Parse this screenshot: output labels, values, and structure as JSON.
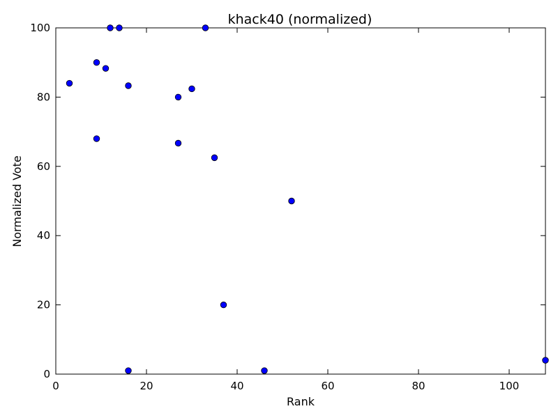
{
  "chart_data": {
    "type": "scatter",
    "title": "khack40 (normalized)",
    "xlabel": "Rank",
    "ylabel": "Normalized Vote",
    "xlim": [
      0,
      108
    ],
    "ylim": [
      0,
      100
    ],
    "xticks": [
      0,
      20,
      40,
      60,
      80,
      100
    ],
    "yticks": [
      0,
      20,
      40,
      60,
      80,
      100
    ],
    "grid": false,
    "colors": {
      "marker_fill": "#0000ff",
      "marker_edge": "#000000",
      "axes": "#000000"
    },
    "series": [
      {
        "x": [
          3,
          9,
          9,
          11,
          12,
          14,
          16,
          16,
          27,
          27,
          30,
          33,
          35,
          37,
          46,
          52,
          108
        ],
        "y": [
          84,
          90,
          68,
          88.3,
          100,
          100,
          83.3,
          1,
          80,
          66.7,
          82.4,
          100,
          62.5,
          20,
          1,
          50,
          4
        ]
      }
    ]
  }
}
